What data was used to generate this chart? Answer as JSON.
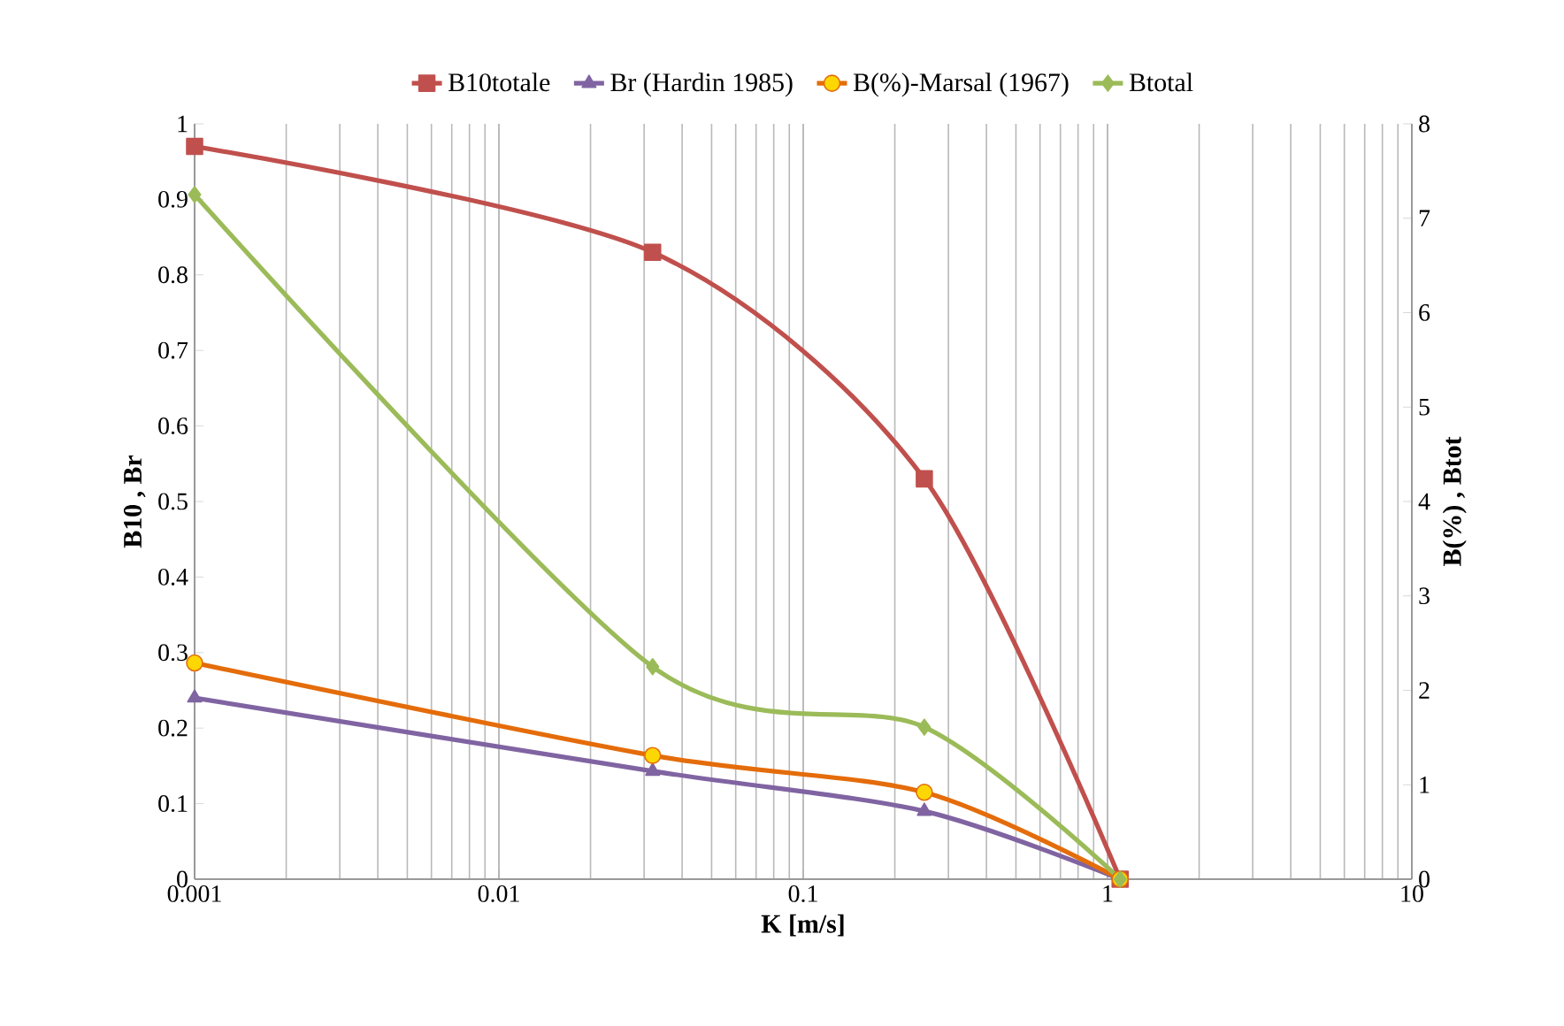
{
  "chart_data": {
    "type": "line",
    "xlabel": "K [m/s]",
    "ylabel": "B10 , Br",
    "y2label": "B(%) ,  Btot",
    "log": "x",
    "grid": "x",
    "legend": "top",
    "xlim": [
      0.001,
      10
    ],
    "xticks": [
      0.001,
      0.01,
      0.1,
      1,
      10
    ],
    "ylim": [
      0,
      1
    ],
    "yticks": [
      0,
      0.1,
      0.2,
      0.3,
      0.4,
      0.5,
      0.6,
      0.7,
      0.8,
      0.9,
      1
    ],
    "y2lim": [
      0,
      8
    ],
    "y2ticks": [
      0,
      1,
      2,
      3,
      4,
      5,
      6,
      7,
      8
    ],
    "x": [
      0.001,
      0.032,
      0.25,
      1.1
    ],
    "series": [
      {
        "name": "B10totale",
        "color": "#c0504d",
        "marker": "square",
        "values": [
          0.97,
          0.83,
          0.53,
          0
        ]
      },
      {
        "name": "Br (Hardin 1985)",
        "color": "#8064a2",
        "marker": "triangle",
        "values": [
          0.24,
          0.143,
          0.09,
          0
        ]
      },
      {
        "name": "B(%)-Marsal (1967)",
        "color": "#e46c0a",
        "marker": "circle",
        "axis": "y2",
        "values": [
          2.29,
          1.31,
          0.92,
          0
        ]
      },
      {
        "name": "Btotal",
        "color": "#9bbb59",
        "marker": "diamond",
        "axis": "y2",
        "values": [
          7.25,
          2.25,
          1.61,
          0
        ]
      }
    ]
  }
}
